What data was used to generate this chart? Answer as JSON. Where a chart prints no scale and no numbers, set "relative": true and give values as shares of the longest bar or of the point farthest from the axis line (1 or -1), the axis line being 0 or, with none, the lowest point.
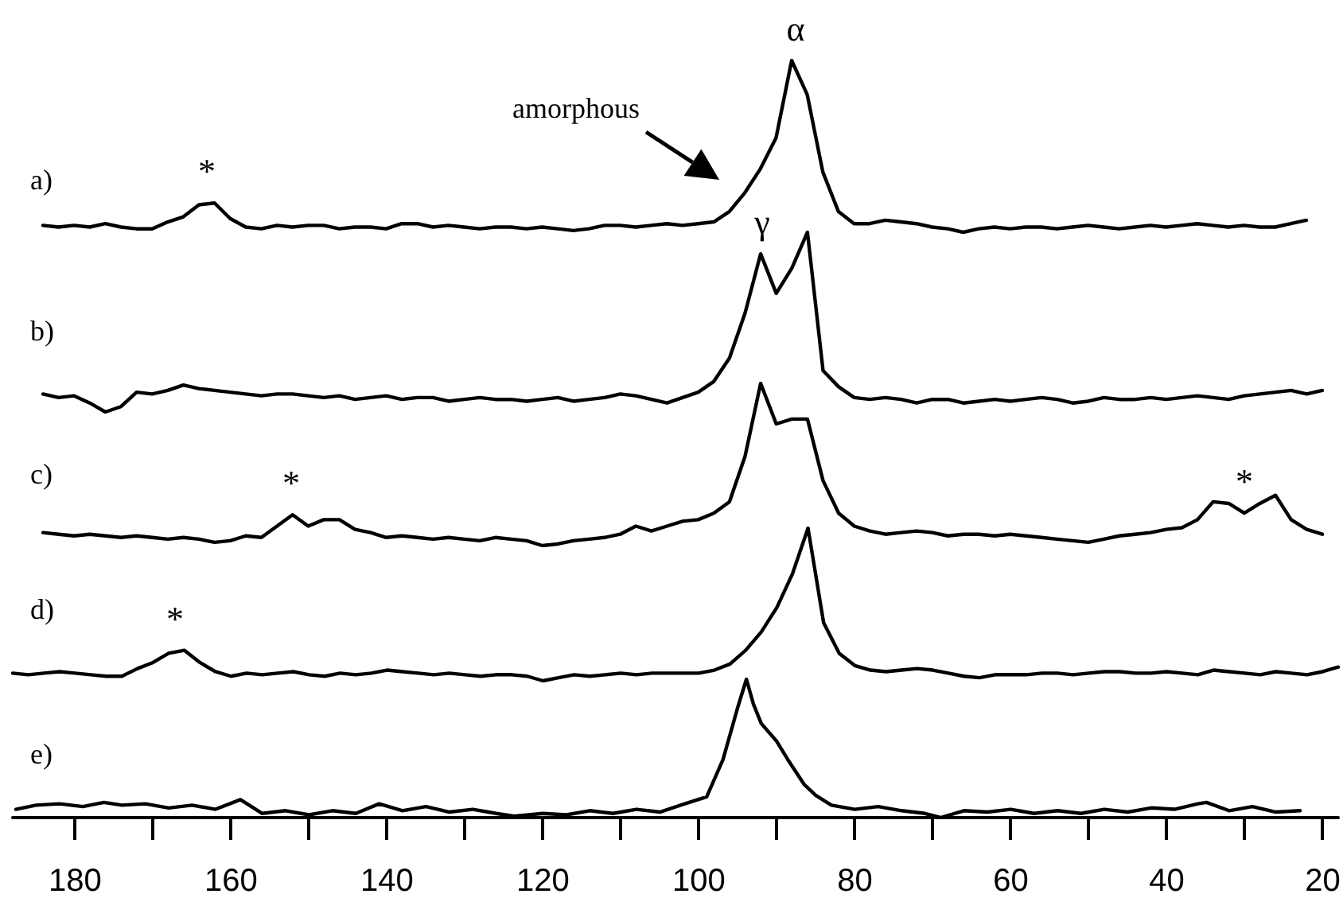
{
  "chart_data": [
    {
      "type": "line",
      "title": "a)",
      "relative": true,
      "tick_labels": false,
      "categories": [
        null,
        null,
        null,
        null,
        null,
        null,
        null,
        null,
        null,
        null,
        null,
        null,
        null,
        null,
        null,
        null,
        null,
        null,
        null,
        null,
        null,
        null,
        null,
        null,
        null,
        null,
        null,
        null,
        null,
        null,
        null,
        null,
        null,
        null,
        null,
        null,
        null,
        null,
        null,
        null,
        null,
        null,
        null,
        null,
        null,
        null,
        null,
        null,
        null,
        null,
        null,
        null,
        null,
        null,
        null,
        null,
        null,
        null,
        null,
        null,
        null,
        null,
        null,
        null,
        null,
        null,
        null,
        null,
        null,
        null,
        null,
        null,
        null,
        null,
        null,
        null,
        null,
        null,
        null,
        null,
        null,
        null
      ],
      "series": [
        {
          "color": "#000000",
          "values": [
            0.04,
            0.03,
            0.04,
            0.03,
            0.05,
            0.03,
            0.02,
            0.02,
            0.06,
            0.09,
            0.16,
            0.17,
            0.08,
            0.03,
            0.02,
            0.04,
            0.03,
            0.04,
            0.04,
            0.02,
            0.03,
            0.03,
            0.02,
            0.05,
            0.05,
            0.03,
            0.04,
            0.03,
            0.02,
            0.03,
            0.03,
            0.02,
            0.03,
            0.02,
            0.01,
            0.02,
            0.04,
            0.04,
            0.03,
            0.04,
            0.05,
            0.04,
            0.05,
            0.06,
            0.12,
            0.23,
            0.37,
            0.55,
            1,
            0.8,
            0.35,
            0.12,
            0.05,
            0.05,
            0.07,
            0.06,
            0.05,
            0.03,
            0.02,
            0,
            0.02,
            0.03,
            0.02,
            0.03,
            0.03,
            0.02,
            0.03,
            0.04,
            0.03,
            0.02,
            0.03,
            0.04,
            0.03,
            0.04,
            0.05,
            0.04,
            0.03,
            0.04,
            0.03,
            0.03,
            0.05,
            0.07
          ]
        }
      ],
      "annotations": [
        {
          "text": "*",
          "y": 0.17
        },
        {
          "text": "α",
          "y": 1
        },
        "amorphous"
      ]
    },
    {
      "type": "line",
      "title": "b)",
      "relative": true,
      "tick_labels": false,
      "categories": [
        null,
        null,
        null,
        null,
        null,
        null,
        null,
        null,
        null,
        null,
        null,
        null,
        null,
        null,
        null,
        null,
        null,
        null,
        null,
        null,
        null,
        null,
        null,
        null,
        null,
        null,
        null,
        null,
        null,
        null,
        null,
        null,
        null,
        null,
        null,
        null,
        null,
        null,
        null,
        null,
        null,
        null,
        null,
        null,
        null,
        null,
        null,
        null,
        null,
        null,
        null,
        null,
        null,
        null,
        null,
        null,
        null,
        null,
        null,
        null,
        null,
        null,
        null,
        null,
        null,
        null,
        null,
        null,
        null,
        null,
        null,
        null,
        null,
        null,
        null,
        null,
        null,
        null,
        null,
        null,
        null,
        null,
        null
      ],
      "series": [
        {
          "color": "#000000",
          "values": [
            0.1,
            0.08,
            0.09,
            0.05,
            0,
            0.03,
            0.11,
            0.1,
            0.12,
            0.15,
            0.13,
            0.12,
            0.11,
            0.1,
            0.09,
            0.1,
            0.1,
            0.09,
            0.08,
            0.09,
            0.07,
            0.08,
            0.09,
            0.07,
            0.08,
            0.08,
            0.06,
            0.07,
            0.08,
            0.07,
            0.07,
            0.06,
            0.07,
            0.08,
            0.06,
            0.07,
            0.08,
            0.1,
            0.09,
            0.07,
            0.05,
            0.08,
            0.11,
            0.17,
            0.3,
            0.55,
            0.88,
            0.66,
            0.8,
            1,
            0.23,
            0.14,
            0.08,
            0.07,
            0.08,
            0.07,
            0.05,
            0.07,
            0.07,
            0.05,
            0.06,
            0.07,
            0.06,
            0.07,
            0.08,
            0.07,
            0.05,
            0.06,
            0.08,
            0.07,
            0.07,
            0.08,
            0.07,
            0.08,
            0.09,
            0.08,
            0.07,
            0.09,
            0.1,
            0.11,
            0.12,
            0.1,
            0.12
          ]
        }
      ],
      "annotations": [
        {
          "text": "γ",
          "y": 0.88
        }
      ]
    },
    {
      "type": "line",
      "title": "c)",
      "relative": true,
      "tick_labels": false,
      "categories": [
        null,
        null,
        null,
        null,
        null,
        null,
        null,
        null,
        null,
        null,
        null,
        null,
        null,
        null,
        null,
        null,
        null,
        null,
        null,
        null,
        null,
        null,
        null,
        null,
        null,
        null,
        null,
        null,
        null,
        null,
        null,
        null,
        null,
        null,
        null,
        null,
        null,
        null,
        null,
        null,
        null,
        null,
        null,
        null,
        null,
        null,
        null,
        null,
        null,
        null,
        null,
        null,
        null,
        null,
        null,
        null,
        null,
        null,
        null,
        null,
        null,
        null,
        null,
        null,
        null,
        null,
        null,
        null,
        null,
        null,
        null,
        null,
        null,
        null,
        null,
        null,
        null,
        null,
        null,
        null,
        null,
        null,
        null
      ],
      "series": [
        {
          "color": "#000000",
          "values": [
            0.08,
            0.07,
            0.06,
            0.07,
            0.06,
            0.05,
            0.06,
            0.05,
            0.04,
            0.05,
            0.04,
            0.02,
            0.03,
            0.06,
            0.05,
            0.12,
            0.19,
            0.12,
            0.16,
            0.16,
            0.1,
            0.08,
            0.05,
            0.06,
            0.05,
            0.04,
            0.05,
            0.04,
            0.03,
            0.05,
            0.04,
            0.03,
            0,
            0.01,
            0.03,
            0.04,
            0.05,
            0.07,
            0.12,
            0.09,
            0.12,
            0.15,
            0.16,
            0.2,
            0.27,
            0.55,
            1,
            0.75,
            0.78,
            0.78,
            0.4,
            0.2,
            0.12,
            0.09,
            0.07,
            0.08,
            0.09,
            0.08,
            0.06,
            0.07,
            0.07,
            0.06,
            0.07,
            0.06,
            0.05,
            0.04,
            0.03,
            0.02,
            0.04,
            0.06,
            0.07,
            0.08,
            0.1,
            0.11,
            0.16,
            0.27,
            0.26,
            0.2,
            0.26,
            0.31,
            0.16,
            0.1,
            0.07
          ]
        }
      ],
      "annotations": [
        {
          "text": "*",
          "y": 0.19
        },
        {
          "text": "*",
          "y": 0.2
        }
      ]
    },
    {
      "type": "line",
      "title": "d)",
      "relative": true,
      "tick_labels": false,
      "categories": [
        null,
        null,
        null,
        null,
        null,
        null,
        null,
        null,
        null,
        null,
        null,
        null,
        null,
        null,
        null,
        null,
        null,
        null,
        null,
        null,
        null,
        null,
        null,
        null,
        null,
        null,
        null,
        null,
        null,
        null,
        null,
        null,
        null,
        null,
        null,
        null,
        null,
        null,
        null,
        null,
        null,
        null,
        null,
        null,
        null,
        null,
        null,
        null,
        null,
        null,
        null,
        null,
        null,
        null,
        null,
        null,
        null,
        null,
        null,
        null,
        null,
        null,
        null,
        null,
        null,
        null,
        null,
        null,
        null,
        null,
        null,
        null,
        null,
        null,
        null,
        null,
        null,
        null,
        null,
        null,
        null,
        null,
        null,
        null,
        null,
        null
      ],
      "series": [
        {
          "color": "#000000",
          "values": [
            0.05,
            0.04,
            0.05,
            0.06,
            0.05,
            0.04,
            0.03,
            0.03,
            0.08,
            0.12,
            0.18,
            0.2,
            0.12,
            0.06,
            0.03,
            0.05,
            0.04,
            0.05,
            0.06,
            0.04,
            0.03,
            0.05,
            0.04,
            0.05,
            0.07,
            0.06,
            0.05,
            0.04,
            0.05,
            0.04,
            0.03,
            0.04,
            0.04,
            0.03,
            0,
            0.02,
            0.04,
            0.03,
            0.04,
            0.05,
            0.04,
            0.05,
            0.05,
            0.05,
            0.05,
            0.07,
            0.11,
            0.2,
            0.32,
            0.48,
            0.7,
            1,
            0.38,
            0.18,
            0.1,
            0.07,
            0.06,
            0.07,
            0.08,
            0.07,
            0.05,
            0.03,
            0.02,
            0.04,
            0.04,
            0.04,
            0.05,
            0.05,
            0.04,
            0.05,
            0.06,
            0.06,
            0.05,
            0.05,
            0.06,
            0.05,
            0.04,
            0.07,
            0.06,
            0.05,
            0.04,
            0.06,
            0.05,
            0.04,
            0.06,
            0.09
          ]
        }
      ],
      "annotations": [
        {
          "text": "*",
          "y": 0.2
        }
      ]
    },
    {
      "type": "line",
      "title": "e)",
      "relative": true,
      "xlim": [
        188,
        18
      ],
      "tick_labels": "x",
      "xticks": [
        180,
        {
          "value": 170,
          "label": null
        },
        160,
        {
          "value": 150,
          "label": null
        },
        140,
        {
          "value": 130,
          "label": null
        },
        120,
        {
          "value": 110,
          "label": null
        },
        100,
        {
          "value": 90,
          "label": null
        },
        80,
        {
          "value": 70,
          "label": null
        },
        60,
        {
          "value": 50,
          "label": null
        },
        40,
        {
          "value": 30,
          "label": null
        },
        20
      ],
      "series": [
        {
          "color": "#000000",
          "x": [
            187.6,
            185,
            182,
            179,
            176.3,
            174,
            171,
            168,
            165,
            162,
            158.8,
            156,
            153,
            150,
            147,
            144,
            141,
            138,
            135,
            132,
            129,
            126,
            123.7,
            120,
            117,
            114,
            111,
            108,
            105,
            101.8,
            99,
            96.9,
            95,
            93.9,
            93,
            92,
            90,
            88.6,
            86.5,
            85,
            83,
            80,
            77,
            74,
            71,
            69,
            66,
            63,
            60,
            57,
            54,
            51,
            48,
            45,
            42,
            39,
            36,
            34.9,
            32,
            29,
            26,
            22.9
          ],
          "values": [
            0.06,
            0.09,
            0.1,
            0.08,
            0.11,
            0.09,
            0.1,
            0.07,
            0.09,
            0.06,
            0.13,
            0.03,
            0.05,
            0.02,
            0.05,
            0.03,
            0.1,
            0.05,
            0.08,
            0.04,
            0.06,
            0.03,
            0.01,
            0.03,
            0.02,
            0.05,
            0.03,
            0.06,
            0.04,
            0.1,
            0.15,
            0.42,
            0.8,
            1,
            0.82,
            0.68,
            0.55,
            0.42,
            0.24,
            0.16,
            0.09,
            0.06,
            0.08,
            0.05,
            0.03,
            0,
            0.05,
            0.04,
            0.06,
            0.03,
            0.05,
            0.03,
            0.06,
            0.04,
            0.07,
            0.06,
            0.1,
            0.11,
            0.05,
            0.08,
            0.04,
            0.05
          ]
        }
      ]
    }
  ]
}
